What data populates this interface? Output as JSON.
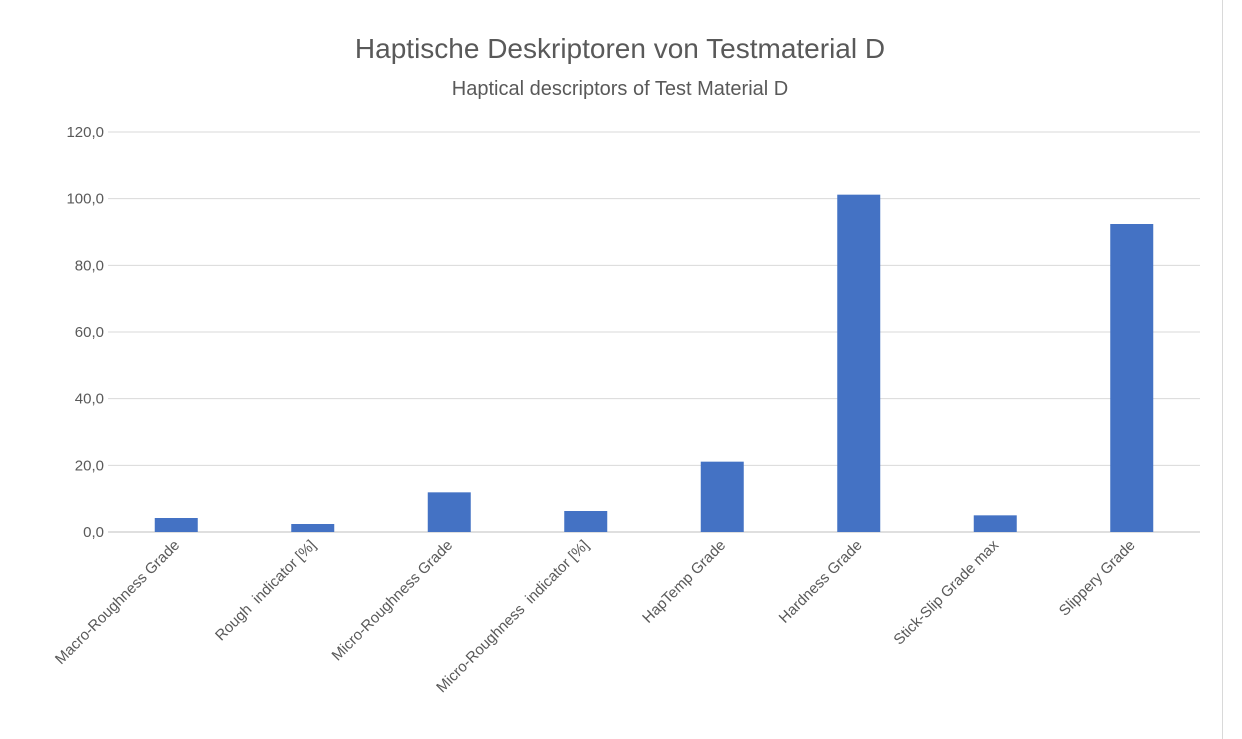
{
  "chart_data": {
    "type": "bar",
    "title": "Haptische Deskriptoren von Testmaterial D",
    "subtitle": "Haptical descriptors of Test Material D",
    "categories": [
      "Macro-Roughness Grade",
      "Rough  indicator [%]",
      "Micro-Roughness Grade",
      "Micro-Roughness  indicator [%]",
      "HapTemp Grade",
      "Hardness Grade",
      "Stick-Slip Grade max",
      "Slippery Grade"
    ],
    "values": [
      4.2,
      2.4,
      11.9,
      6.3,
      21.1,
      101.2,
      5.0,
      92.4
    ],
    "ylim": [
      0,
      120
    ],
    "yticks": [
      "0,0",
      "20,0",
      "40,0",
      "60,0",
      "80,0",
      "100,0",
      "120,0"
    ],
    "ytick_values": [
      0,
      20,
      40,
      60,
      80,
      100,
      120
    ],
    "grid": true,
    "legend": "none",
    "bar_color": "#4472C4"
  }
}
